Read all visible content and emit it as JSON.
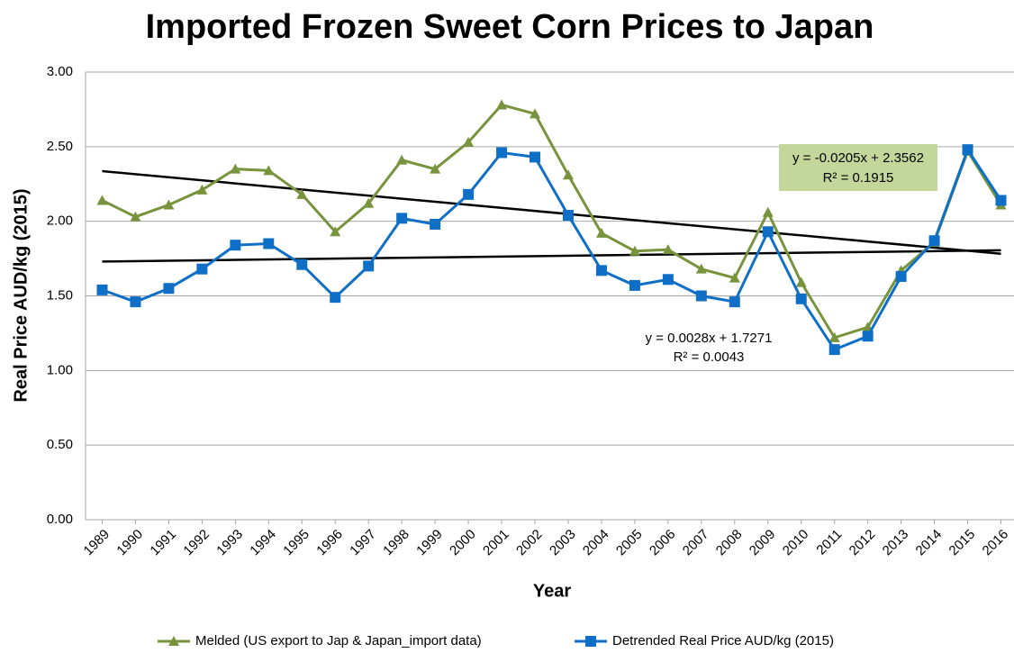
{
  "chart_data": {
    "type": "line",
    "title": "Imported Frozen Sweet Corn Prices to Japan",
    "x_label": "Year",
    "y_label": "Real Price AUD/kg (2015)",
    "categories": [
      "1989",
      "1990",
      "1991",
      "1992",
      "1993",
      "1994",
      "1995",
      "1996",
      "1997",
      "1998",
      "1999",
      "2000",
      "2001",
      "2002",
      "2003",
      "2004",
      "2005",
      "2006",
      "2007",
      "2008",
      "2009",
      "2010",
      "2011",
      "2012",
      "2013",
      "2014",
      "2015",
      "2016"
    ],
    "series": [
      {
        "name": "Melded (US export to Jap & Japan_import data)",
        "color": "#77933c",
        "marker": "triangle",
        "values": [
          2.14,
          2.03,
          2.11,
          2.21,
          2.35,
          2.34,
          2.18,
          1.93,
          2.12,
          2.41,
          2.35,
          2.53,
          2.78,
          2.72,
          2.31,
          1.92,
          1.8,
          1.81,
          1.68,
          1.62,
          2.06,
          1.59,
          1.22,
          1.29,
          1.67,
          1.86,
          2.47,
          2.11
        ]
      },
      {
        "name": "Detrended Real Price AUD/kg (2015)",
        "color": "#0f6fc6",
        "marker": "square",
        "values": [
          1.54,
          1.46,
          1.55,
          1.68,
          1.84,
          1.85,
          1.71,
          1.49,
          1.7,
          2.02,
          1.98,
          2.18,
          2.46,
          2.43,
          2.04,
          1.67,
          1.57,
          1.61,
          1.5,
          1.46,
          1.93,
          1.48,
          1.14,
          1.23,
          1.63,
          1.87,
          2.48,
          2.14
        ]
      }
    ],
    "trendlines": [
      {
        "equation": "y = -0.0205x + 2.3562",
        "r2": "R² = 0.1915",
        "slope": -0.0205,
        "intercept": 2.3562,
        "color": "#000000",
        "box": "#c4d79b"
      },
      {
        "equation": "y = 0.0028x + 1.7271",
        "r2": "R² = 0.0043",
        "slope": 0.0028,
        "intercept": 1.7271,
        "color": "#000000"
      }
    ],
    "ylim": [
      0,
      3
    ],
    "yticks": [
      {
        "value": 0,
        "label": "0.00"
      },
      {
        "value": 0.5,
        "label": "0.50"
      },
      {
        "value": 1,
        "label": "1.00"
      },
      {
        "value": 1.5,
        "label": "1.50"
      },
      {
        "value": 2,
        "label": "2.00"
      },
      {
        "value": 2.5,
        "label": "2.50"
      },
      {
        "value": 3,
        "label": "3.00"
      }
    ],
    "grid": true,
    "legend": "bottom"
  }
}
